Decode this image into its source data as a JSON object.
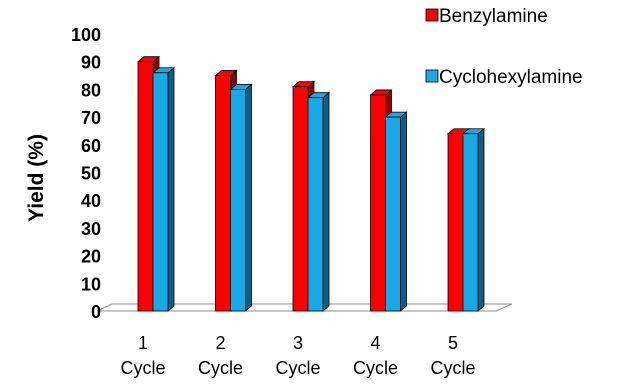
{
  "chart_data": {
    "type": "bar",
    "style": "3d-clustered-column",
    "categories": [
      [
        "1",
        "Cycle"
      ],
      [
        "2",
        "Cycle"
      ],
      [
        "3",
        "Cycle"
      ],
      [
        "4",
        "Cycle"
      ],
      [
        "5",
        "Cycle"
      ]
    ],
    "series": [
      {
        "name": "Benzylamine",
        "values": [
          90,
          85,
          81,
          78,
          64
        ],
        "color": "#ff0000",
        "dark": "#8b0000"
      },
      {
        "name": "Cyclohexylamine",
        "values": [
          86,
          80,
          77,
          70,
          64
        ],
        "color": "#19a9e6",
        "dark": "#0d5f86"
      }
    ],
    "title": "",
    "xlabel": "",
    "ylabel": "Yield (%)",
    "ylim": [
      0,
      100
    ],
    "yticks": [
      0,
      10,
      20,
      30,
      40,
      50,
      60,
      70,
      80,
      90,
      100
    ],
    "grid": false,
    "legend_position": "top-right"
  }
}
